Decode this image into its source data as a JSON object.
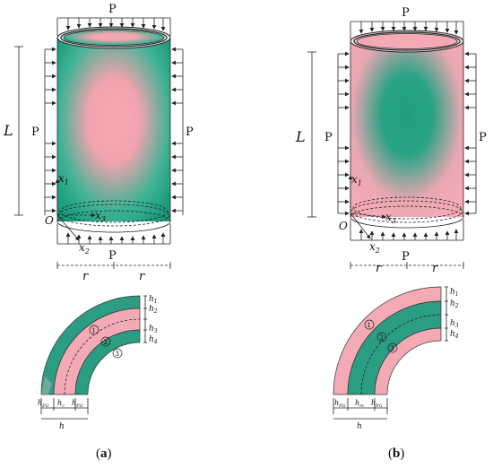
{
  "figure": {
    "panels": [
      {
        "id": "a",
        "caption_open": "(",
        "caption_letter": "a",
        "caption_close": ")",
        "load": "P",
        "length": "L",
        "radius": "r",
        "origin": "O",
        "axes": [
          "x",
          "x",
          "x"
        ],
        "axes_sub": [
          "1",
          "2",
          "3"
        ],
        "layer_numbers": [
          "1",
          "2",
          "3"
        ],
        "layer_h": [
          "h",
          "h",
          "h",
          "h"
        ],
        "layer_h_sub": [
          "1",
          "2",
          "3",
          "4"
        ],
        "thickness_labels": [
          "h",
          "h",
          "h"
        ],
        "thickness_sub": [
          "FG",
          "c",
          "FG"
        ],
        "total_thickness": "h",
        "colors": {
          "outer": "#1b9e7f",
          "inner": "#f4a6b3"
        }
      },
      {
        "id": "b",
        "caption_open": "(",
        "caption_letter": "b",
        "caption_close": ")",
        "load": "P",
        "length": "L",
        "radius": "r",
        "origin": "O",
        "axes": [
          "x",
          "x",
          "x"
        ],
        "axes_sub": [
          "1",
          "2",
          "3"
        ],
        "layer_numbers": [
          "1",
          "2",
          "3"
        ],
        "layer_h": [
          "h",
          "h",
          "h",
          "h"
        ],
        "layer_h_sub": [
          "1",
          "2",
          "3",
          "4"
        ],
        "thickness_labels": [
          "h",
          "h",
          "h"
        ],
        "thickness_sub": [
          "FG",
          "m",
          "FG"
        ],
        "total_thickness": "h",
        "colors": {
          "outer": "#f4a6b3",
          "inner": "#1b9e7f"
        }
      }
    ]
  }
}
